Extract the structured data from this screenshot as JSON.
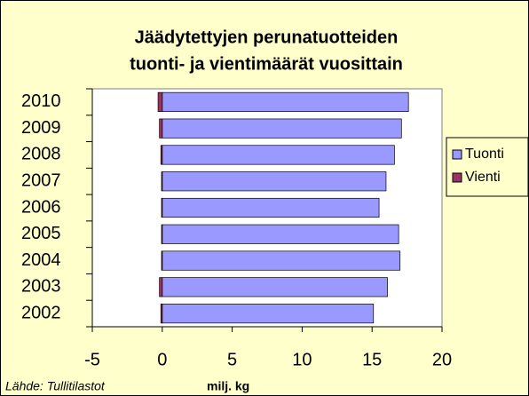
{
  "chart_data": {
    "type": "bar",
    "orientation": "horizontal",
    "title_lines": [
      "Jäädytettyjen perunatuotteiden",
      "tuonti- ja vientimäärät vuosittain"
    ],
    "categories": [
      "2002",
      "2003",
      "2004",
      "2005",
      "2006",
      "2007",
      "2008",
      "2009",
      "2010"
    ],
    "series": [
      {
        "name": "Tuonti",
        "color": "#9999ff",
        "values": [
          15.1,
          16.1,
          17.0,
          16.9,
          15.5,
          16.0,
          16.6,
          17.1,
          17.6
        ]
      },
      {
        "name": "Vienti",
        "color": "#993366",
        "values": [
          -0.1,
          -0.2,
          -0.05,
          -0.05,
          -0.05,
          -0.05,
          -0.1,
          -0.2,
          -0.3
        ]
      }
    ],
    "xlim": [
      -5,
      20
    ],
    "xticks": [
      -5,
      0,
      5,
      10,
      15,
      20
    ],
    "xlabel": "milj. kg",
    "source": "Lähde: Tullitilastot",
    "legend": "right"
  }
}
